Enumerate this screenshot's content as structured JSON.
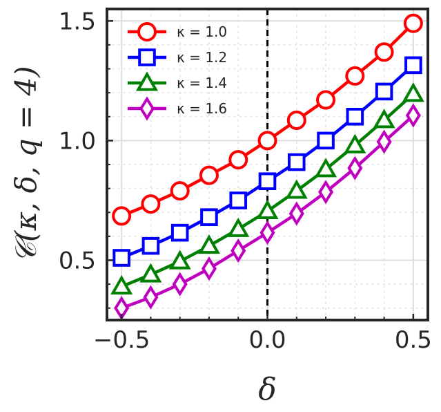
{
  "chart_data": {
    "type": "line",
    "title": "",
    "xlabel": "δ",
    "ylabel": "𝒞(κ, δ, q = 4)",
    "xlim": [
      -0.55,
      0.55
    ],
    "ylim": [
      0.25,
      1.55
    ],
    "xticks": [
      -0.5,
      0.0,
      0.5
    ],
    "xtick_labels": [
      "−0.5",
      "0.0",
      "0.5"
    ],
    "yticks": [
      0.5,
      1.0,
      1.5
    ],
    "ytick_labels": [
      "0.5",
      "1.0",
      "1.5"
    ],
    "grid": true,
    "reference_line": {
      "x": 0.0,
      "style": "dashed",
      "color": "#000000"
    },
    "legend_position": "top-left",
    "x": [
      -0.5,
      -0.4,
      -0.3,
      -0.2,
      -0.1,
      0.0,
      0.1,
      0.2,
      0.3,
      0.4,
      0.5
    ],
    "series": [
      {
        "name": "κ = 1.0",
        "color": "#ff0000",
        "marker": "circle",
        "values": [
          0.685,
          0.735,
          0.79,
          0.855,
          0.92,
          1.0,
          1.085,
          1.17,
          1.27,
          1.37,
          1.49
        ]
      },
      {
        "name": "κ = 1.2",
        "color": "#0000ff",
        "marker": "square",
        "values": [
          0.51,
          0.56,
          0.615,
          0.68,
          0.75,
          0.83,
          0.91,
          1.0,
          1.1,
          1.205,
          1.315
        ]
      },
      {
        "name": "κ = 1.4",
        "color": "#008000",
        "marker": "triangle",
        "values": [
          0.39,
          0.44,
          0.495,
          0.56,
          0.63,
          0.705,
          0.79,
          0.88,
          0.98,
          1.085,
          1.195
        ]
      },
      {
        "name": "κ = 1.6",
        "color": "#bf00bf",
        "marker": "diamond",
        "values": [
          0.3,
          0.345,
          0.4,
          0.465,
          0.54,
          0.615,
          0.695,
          0.785,
          0.885,
          0.995,
          1.105
        ]
      }
    ]
  }
}
